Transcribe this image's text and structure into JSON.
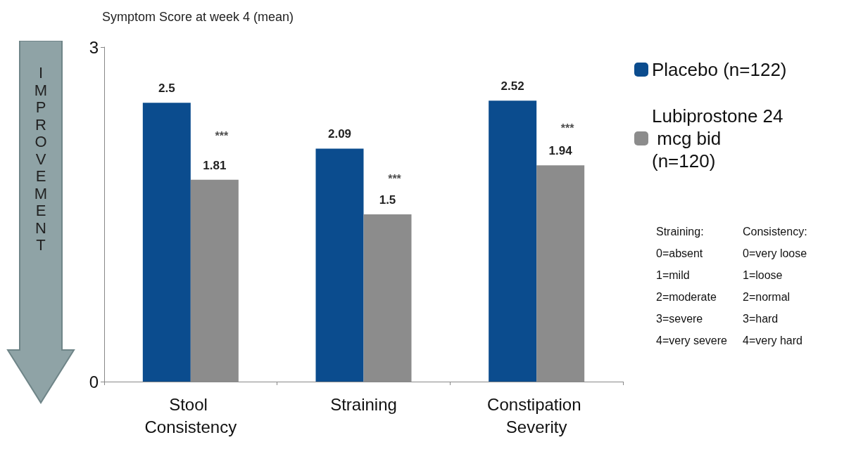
{
  "chart_data": {
    "type": "bar",
    "title": "Symptom Score at week 4 (mean)",
    "categories": [
      "Stool Consistency",
      "Straining",
      "Constipation Severity"
    ],
    "series": [
      {
        "name": "Placebo (n=122)",
        "color": "#0b4c8e",
        "values": [
          2.5,
          2.09,
          2.52
        ]
      },
      {
        "name": "Lubiprostone 24 mcg bid (n=120)",
        "color": "#8c8c8c",
        "values": [
          1.81,
          1.5,
          1.94
        ]
      }
    ],
    "ylim": [
      0,
      3
    ],
    "yticks": [
      0,
      3
    ],
    "grid": false,
    "legend": "top right",
    "data_labels": true,
    "annotations": [
      "IMPROVEMENT",
      "Straining:\n0=absent\n1=mild\n2=moderate\n3=severe\n4=very severe",
      "Consistency:\n0=very loose\n1=loose\n2=normal\n3=hard\n4=very hard",
      {
        "text": "***",
        "x": "Stool Consistency",
        "y": 2.2
      },
      {
        "text": "***",
        "x": "Straining",
        "y": 1.82
      },
      {
        "text": "***",
        "x": "Constipation Severity",
        "y": 2.27
      }
    ]
  }
}
